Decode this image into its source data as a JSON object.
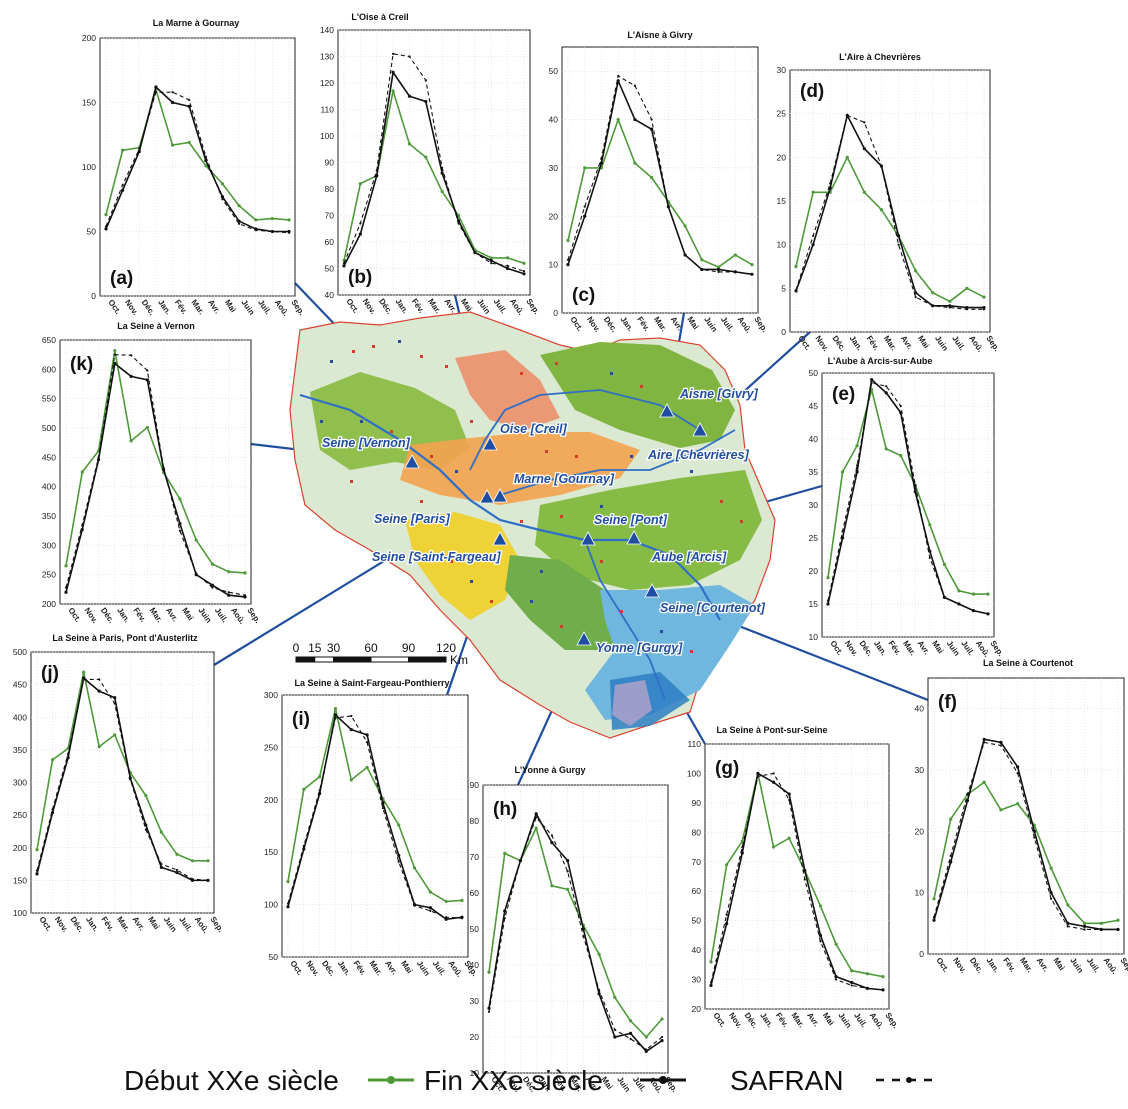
{
  "months": [
    "Oct.",
    "Nov.",
    "Déc.",
    "Jan.",
    "Fév.",
    "Mar.",
    "Avr.",
    "Mai",
    "Juin",
    "Juil.",
    "Aoû.",
    "Sep."
  ],
  "colors": {
    "debut": "#4e9a3a",
    "fin": "#111111",
    "safran": "#111111",
    "link": "#1f4ea1",
    "label": "#1f4ea1"
  },
  "legend": [
    {
      "key": "debut",
      "label": "Début XXe siècle"
    },
    {
      "key": "fin",
      "label": "Fin XXe siècle"
    },
    {
      "key": "safran",
      "label": "SAFRAN"
    }
  ],
  "scalebar": {
    "ticks": [
      "0",
      "15",
      "30",
      "60",
      "90",
      "120"
    ],
    "unit": "Km"
  },
  "map": {
    "stations": [
      {
        "name": "Seine [Vernon]"
      },
      {
        "name": "Oise [Creil]"
      },
      {
        "name": "Marne [Gournay]"
      },
      {
        "name": "Seine [Paris]"
      },
      {
        "name": "Seine [Saint-Fargeau]"
      },
      {
        "name": "Aisne [Givry]"
      },
      {
        "name": "Aire [Chevrières]"
      },
      {
        "name": "Seine [Pont]"
      },
      {
        "name": "Aube [Arcis]"
      },
      {
        "name": "Seine [Courtenot]"
      },
      {
        "name": "Yonne [Gurgy]"
      }
    ]
  },
  "chart_data": [
    {
      "type": "line",
      "letter": "(a)",
      "title": "La Marne à Gournay",
      "ylim": [
        0,
        200
      ],
      "yticks": [
        0,
        50,
        100,
        150,
        200
      ],
      "x": [
        "Oct.",
        "Nov.",
        "Déc.",
        "Jan.",
        "Fév.",
        "Mar.",
        "Avr.",
        "Mai",
        "Juin",
        "Juil.",
        "Aoû.",
        "Sep."
      ],
      "series": [
        {
          "name": "Début XXe siècle",
          "values": [
            63,
            113,
            115,
            160,
            117,
            119,
            101,
            87,
            70,
            59,
            60,
            59
          ]
        },
        {
          "name": "Fin XXe siècle",
          "values": [
            52,
            82,
            112,
            162,
            150,
            147,
            105,
            77,
            58,
            52,
            50,
            50
          ]
        },
        {
          "name": "SAFRAN",
          "values": [
            54,
            86,
            114,
            158,
            158,
            152,
            108,
            75,
            56,
            51,
            50,
            49
          ]
        }
      ]
    },
    {
      "type": "line",
      "letter": "(b)",
      "title": "L'Oise à Creil",
      "ylim": [
        40,
        140
      ],
      "yticks": [
        40,
        50,
        60,
        70,
        80,
        90,
        100,
        110,
        120,
        130,
        140
      ],
      "x": [
        "Oct.",
        "Nov.",
        "Déc.",
        "Jan.",
        "Fév.",
        "Mar.",
        "Avr.",
        "Mai",
        "Juin",
        "Juil.",
        "Aoû.",
        "Sep."
      ],
      "series": [
        {
          "name": "Début XXe siècle",
          "values": [
            53,
            82,
            85,
            117,
            97,
            92,
            79,
            70,
            57,
            54,
            54,
            52
          ]
        },
        {
          "name": "Fin XXe siècle",
          "values": [
            51,
            63,
            85,
            124,
            115,
            113,
            86,
            68,
            56,
            53,
            50,
            48
          ]
        },
        {
          "name": "SAFRAN",
          "values": [
            52,
            67,
            87,
            131,
            130,
            121,
            88,
            67,
            56,
            52,
            51,
            49
          ]
        }
      ]
    },
    {
      "type": "line",
      "letter": "(c)",
      "title": "L'Aisne à Givry",
      "ylim": [
        0,
        55
      ],
      "yticks": [
        0,
        10,
        20,
        30,
        40,
        50
      ],
      "x": [
        "Oct.",
        "Nov.",
        "Déc.",
        "Jan.",
        "Fév.",
        "Mar.",
        "Avr.",
        "Mai",
        "Juin",
        "Juil.",
        "Aoû.",
        "Sep."
      ],
      "series": [
        {
          "name": "Début XXe siècle",
          "values": [
            15,
            30,
            30,
            40,
            31,
            28,
            23,
            18,
            11,
            9.5,
            12,
            10
          ]
        },
        {
          "name": "Fin XXe siècle",
          "values": [
            10,
            20,
            31,
            48,
            40,
            38,
            22,
            12,
            9,
            9,
            8.5,
            8
          ]
        },
        {
          "name": "SAFRAN",
          "values": [
            11,
            22,
            32,
            49,
            47,
            40,
            22,
            12,
            9,
            8.5,
            8.5,
            8
          ]
        }
      ]
    },
    {
      "type": "line",
      "letter": "(d)",
      "title": "L'Aire à Chevrières",
      "ylim": [
        0,
        30
      ],
      "yticks": [
        0,
        5,
        10,
        15,
        20,
        25,
        30
      ],
      "x": [
        "Oct.",
        "Nov.",
        "Déc.",
        "Jan.",
        "Fév.",
        "Mar.",
        "Avr.",
        "Mai",
        "Juin",
        "Juil.",
        "Aoû.",
        "Sep."
      ],
      "series": [
        {
          "name": "Début XXe siècle",
          "values": [
            7.5,
            16,
            16,
            20,
            16,
            14,
            11,
            7,
            4.5,
            3.5,
            5,
            4
          ]
        },
        {
          "name": "Fin XXe siècle",
          "values": [
            4.7,
            10,
            16.5,
            24.8,
            21,
            19,
            11,
            4.5,
            3,
            3,
            2.8,
            2.8
          ]
        },
        {
          "name": "SAFRAN",
          "values": [
            4.8,
            11,
            17,
            24.8,
            24,
            19,
            10,
            4,
            3,
            2.8,
            2.6,
            2.6
          ]
        }
      ]
    },
    {
      "type": "line",
      "letter": "(e)",
      "title": "L'Aube à Arcis-sur-Aube",
      "ylim": [
        10,
        50
      ],
      "yticks": [
        10,
        15,
        20,
        25,
        30,
        35,
        40,
        45,
        50
      ],
      "x": [
        "Oct.",
        "Nov.",
        "Déc.",
        "Jan.",
        "Fév.",
        "Mar.",
        "Avr.",
        "Mai",
        "Juin",
        "Juil.",
        "Aoû.",
        "Sep."
      ],
      "series": [
        {
          "name": "Début XXe siècle",
          "values": [
            19,
            35,
            39,
            47.5,
            38.5,
            37.5,
            33,
            27,
            21,
            17,
            16.5,
            16.5
          ]
        },
        {
          "name": "Fin XXe siècle",
          "values": [
            15,
            25,
            35,
            49,
            47,
            44,
            32,
            23,
            16,
            15,
            14,
            13.5
          ]
        },
        {
          "name": "SAFRAN",
          "values": [
            15.5,
            26,
            36,
            48.5,
            48,
            45,
            33,
            22,
            16,
            15,
            14,
            13.5
          ]
        }
      ]
    },
    {
      "type": "line",
      "letter": "(f)",
      "title": "La Seine à Courtenot",
      "ylim": [
        0,
        45
      ],
      "yticks": [
        0,
        10,
        20,
        30,
        40
      ],
      "x": [
        "Oct.",
        "Nov.",
        "Déc.",
        "Jan.",
        "Fév.",
        "Mar.",
        "Avr.",
        "Mai",
        "Juin",
        "Juil.",
        "Aoû.",
        "Sep."
      ],
      "series": [
        {
          "name": "Début XXe siècle",
          "values": [
            9,
            22,
            26,
            28,
            23.5,
            24.5,
            21,
            14,
            8,
            5,
            5,
            5.5
          ]
        },
        {
          "name": "Fin XXe siècle",
          "values": [
            5.5,
            15,
            25,
            35,
            34.5,
            30.5,
            20,
            10,
            5,
            4.5,
            4,
            4
          ]
        },
        {
          "name": "SAFRAN",
          "values": [
            6,
            16,
            26,
            34.5,
            34,
            29.5,
            19,
            9,
            4.5,
            4,
            4,
            4
          ]
        }
      ]
    },
    {
      "type": "line",
      "letter": "(g)",
      "title": "La Seine à Pont-sur-Seine",
      "ylim": [
        20,
        110
      ],
      "yticks": [
        20,
        30,
        40,
        50,
        60,
        70,
        80,
        90,
        100,
        110
      ],
      "x": [
        "Oct.",
        "Nov.",
        "Déc.",
        "Jan.",
        "Fév.",
        "Mar.",
        "Avr.",
        "Mai",
        "Juin",
        "Juil.",
        "Aoû.",
        "Sep."
      ],
      "series": [
        {
          "name": "Début XXe siècle",
          "values": [
            36,
            69,
            77,
            100,
            75,
            78,
            67,
            55,
            42,
            33,
            32,
            31
          ]
        },
        {
          "name": "Fin XXe siècle",
          "values": [
            28,
            49,
            73,
            100,
            97,
            93,
            67,
            45,
            31,
            29,
            27,
            26.5
          ]
        },
        {
          "name": "SAFRAN",
          "values": [
            29,
            52,
            75,
            99,
            100,
            91,
            64,
            43,
            30,
            28,
            27,
            26.5
          ]
        }
      ]
    },
    {
      "type": "line",
      "letter": "(h)",
      "title": "L'Yonne à Gurgy",
      "ylim": [
        10,
        90
      ],
      "yticks": [
        10,
        20,
        30,
        40,
        50,
        60,
        70,
        80,
        90
      ],
      "x": [
        "Oct.",
        "Nov.",
        "Déc.",
        "Jan.",
        "Fév.",
        "Mar.",
        "Avr.",
        "Mai",
        "Juin",
        "Juil.",
        "Aoû.",
        "Sep."
      ],
      "series": [
        {
          "name": "Début XXe siècle",
          "values": [
            38,
            71,
            69,
            78,
            62,
            61,
            51,
            43,
            31,
            24.5,
            20,
            25
          ]
        },
        {
          "name": "Fin XXe siècle",
          "values": [
            28,
            55,
            69,
            82,
            74,
            69,
            50,
            32,
            20,
            21,
            16,
            19
          ]
        },
        {
          "name": "SAFRAN",
          "values": [
            27,
            53,
            69,
            81,
            76,
            66,
            48,
            33,
            22,
            19.5,
            16.5,
            20
          ]
        }
      ]
    },
    {
      "type": "line",
      "letter": "(i)",
      "title": "La Seine à Saint-Fargeau-Ponthierry",
      "ylim": [
        50,
        300
      ],
      "yticks": [
        50,
        100,
        150,
        200,
        250,
        300
      ],
      "x": [
        "Oct.",
        "Nov.",
        "Déc.",
        "Jan.",
        "Fév.",
        "Mar.",
        "Avr.",
        "Mai",
        "Juin",
        "Juil.",
        "Aoû.",
        "Sep."
      ],
      "series": [
        {
          "name": "Début XXe siècle",
          "values": [
            122,
            210,
            222,
            287,
            219,
            231,
            201,
            176,
            135,
            112,
            103,
            104
          ]
        },
        {
          "name": "Fin XXe siècle",
          "values": [
            98,
            153,
            206,
            281,
            267,
            262,
            197,
            147,
            100,
            97,
            86,
            88
          ]
        },
        {
          "name": "SAFRAN",
          "values": [
            101,
            156,
            209,
            278,
            280,
            255,
            192,
            141,
            99,
            94,
            88,
            87
          ]
        }
      ]
    },
    {
      "type": "line",
      "letter": "(j)",
      "title": "La Seine à Paris, Pont d'Austerlitz",
      "ylim": [
        100,
        500
      ],
      "yticks": [
        100,
        150,
        200,
        250,
        300,
        350,
        400,
        450,
        500
      ],
      "x": [
        "Oct.",
        "Nov.",
        "Déc.",
        "Jan.",
        "Fév.",
        "Mar.",
        "Avr.",
        "Mai",
        "Juin",
        "Juil.",
        "Aoû.",
        "Sep."
      ],
      "series": [
        {
          "name": "Début XXe siècle",
          "values": [
            197,
            335,
            352,
            469,
            355,
            373,
            315,
            280,
            224,
            190,
            180,
            180
          ]
        },
        {
          "name": "Fin XXe siècle",
          "values": [
            160,
            254,
            338,
            460,
            440,
            430,
            307,
            235,
            170,
            162,
            150,
            150
          ]
        },
        {
          "name": "SAFRAN",
          "values": [
            165,
            259,
            344,
            458,
            458,
            421,
            305,
            228,
            175,
            166,
            152,
            150
          ]
        }
      ]
    },
    {
      "type": "line",
      "letter": "(k)",
      "title": "La Seine à Vernon",
      "ylim": [
        200,
        650
      ],
      "yticks": [
        200,
        250,
        300,
        350,
        400,
        450,
        500,
        550,
        600,
        650
      ],
      "x": [
        "Oct.",
        "Nov.",
        "Déc.",
        "Jan.",
        "Fév.",
        "Mar.",
        "Avr.",
        "Mai",
        "Juin",
        "Juil.",
        "Aoû.",
        "Sep."
      ],
      "series": [
        {
          "name": "Début XXe siècle",
          "values": [
            265,
            425,
            461,
            632,
            478,
            501,
            424,
            379,
            309,
            268,
            255,
            253
          ]
        },
        {
          "name": "Fin XXe siècle",
          "values": [
            220,
            327,
            446,
            610,
            588,
            582,
            429,
            337,
            250,
            232,
            215,
            212
          ]
        },
        {
          "name": "SAFRAN",
          "values": [
            228,
            335,
            450,
            625,
            624,
            598,
            432,
            325,
            252,
            228,
            220,
            215
          ]
        }
      ]
    }
  ]
}
